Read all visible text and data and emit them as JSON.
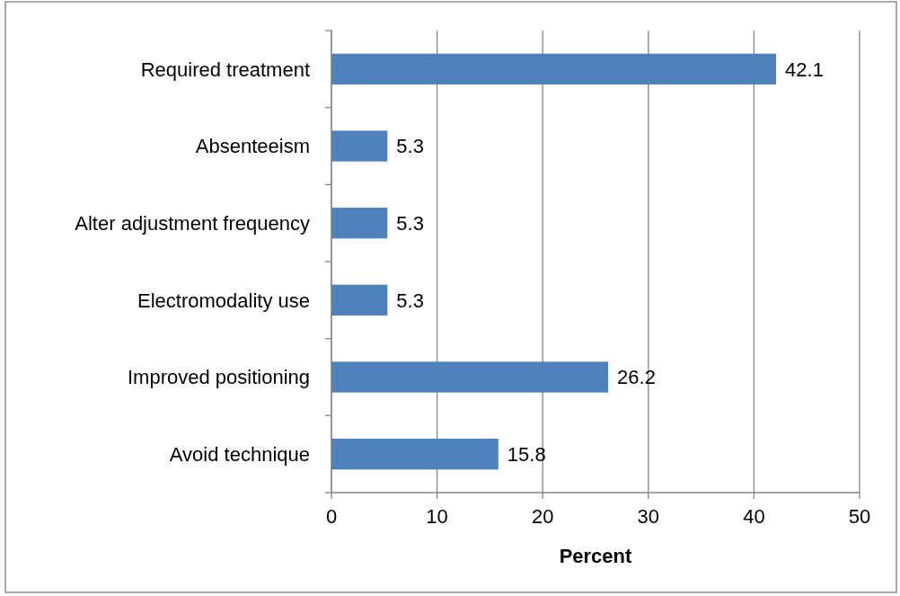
{
  "chart_data": {
    "type": "bar",
    "orientation": "horizontal",
    "xlabel": "Percent",
    "categories": [
      "Required treatment",
      "Absenteeism",
      "Alter adjustment frequency",
      "Electromodality use",
      "Improved positioning",
      "Avoid technique"
    ],
    "values": [
      42.1,
      5.3,
      5.3,
      5.3,
      26.2,
      15.8
    ],
    "color": "#4f81bd",
    "xlim": [
      0,
      50
    ],
    "xticks": [
      0,
      10,
      20,
      30,
      40,
      50
    ],
    "grid": "x",
    "data_labels": true
  }
}
